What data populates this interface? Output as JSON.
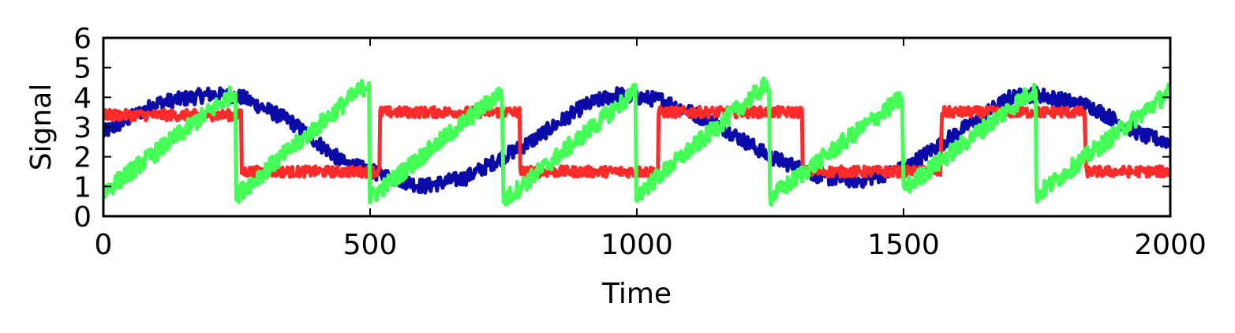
{
  "chart_data": {
    "type": "line",
    "title": "",
    "xlabel": "Time",
    "ylabel": "Signal",
    "xlim": [
      0,
      2000
    ],
    "ylim": [
      0,
      6
    ],
    "xticks": [
      0,
      500,
      1000,
      1500,
      2000
    ],
    "xtick_labels": [
      "0",
      "500",
      "1000",
      "1500",
      "2000"
    ],
    "yticks": [
      0,
      1,
      2,
      3,
      4,
      5,
      6
    ],
    "ytick_labels": [
      "0",
      "1",
      "2",
      "3",
      "4",
      "5",
      "6"
    ],
    "grid": false,
    "legend": "none",
    "series": [
      {
        "color": "#0a0aa8",
        "kind": "noisy-wave",
        "x": [
          0,
          100,
          200,
          260,
          350,
          450,
          520,
          600,
          680,
          750,
          800,
          900,
          960,
          1050,
          1150,
          1250,
          1350,
          1420,
          1500,
          1600,
          1700,
          1750,
          1850,
          1950,
          2000
        ],
        "y": [
          2.8,
          3.8,
          4.1,
          4.0,
          3.2,
          1.8,
          1.4,
          1.0,
          1.3,
          2.0,
          2.5,
          3.7,
          4.1,
          3.9,
          3.1,
          2.0,
          1.3,
          1.2,
          1.6,
          2.8,
          4.0,
          4.1,
          3.7,
          2.7,
          2.5
        ],
        "noise": 0.25
      },
      {
        "color": "#ff2a2a",
        "kind": "square-wave",
        "x": [
          0,
          258,
          259,
          518,
          519,
          780,
          781,
          1040,
          1041,
          1310,
          1311,
          1570,
          1571,
          1840,
          1841,
          2000
        ],
        "y": [
          3.4,
          3.4,
          1.5,
          1.5,
          3.5,
          3.5,
          1.5,
          1.5,
          3.5,
          3.5,
          1.5,
          1.5,
          3.5,
          3.5,
          1.5,
          1.5
        ],
        "noise": 0.18
      },
      {
        "color": "#44ff55",
        "kind": "sawtooth",
        "x": [
          0,
          248,
          249,
          498,
          499,
          748,
          749,
          998,
          999,
          1248,
          1249,
          1498,
          1499,
          1748,
          1749,
          2000
        ],
        "y": [
          0.8,
          4.2,
          0.7,
          4.5,
          0.6,
          4.2,
          0.5,
          4.2,
          0.7,
          4.5,
          0.6,
          4.0,
          0.9,
          4.3,
          0.7,
          4.2
        ],
        "noise": 0.3
      }
    ]
  }
}
